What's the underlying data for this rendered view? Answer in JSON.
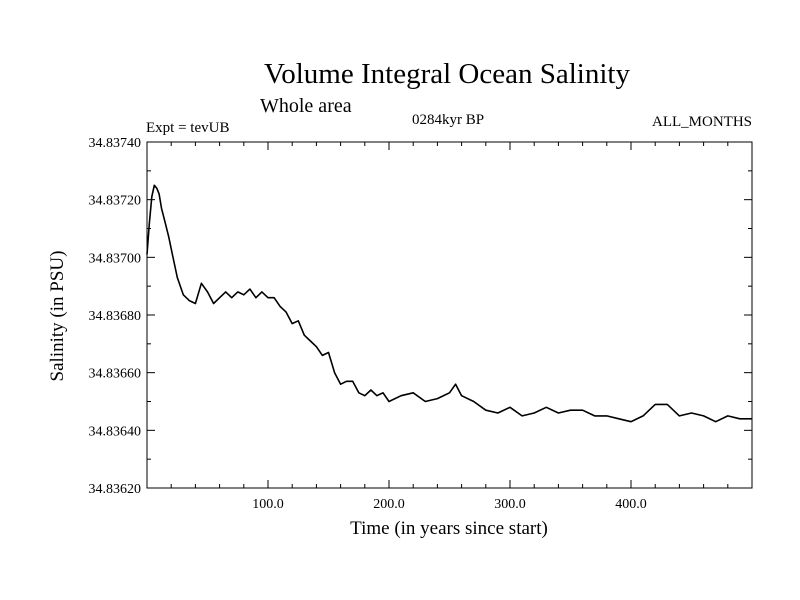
{
  "header": {
    "title": "Volume Integral Ocean Salinity",
    "subtitle": "Whole area",
    "expt_label": "Expt = tevUB",
    "period_label": "0284kyr BP",
    "months_label": "ALL_MONTHS"
  },
  "chart_data": {
    "type": "line",
    "title": "Volume Integral Ocean Salinity",
    "subtitle": "Whole area",
    "xlabel": "Time (in years since start)",
    "ylabel": "Salinity (in PSU)",
    "xlim": [
      0,
      500
    ],
    "ylim": [
      34.8362,
      34.8374
    ],
    "grid": false,
    "x_ticks": [
      100,
      200,
      300,
      400
    ],
    "x_tick_labels": [
      "100.0",
      "200.0",
      "300.0",
      "400.0"
    ],
    "y_ticks": [
      34.8362,
      34.8364,
      34.8366,
      34.8368,
      34.837,
      34.8372,
      34.8374
    ],
    "y_tick_labels": [
      "34.83620",
      "34.83640",
      "34.83660",
      "34.83680",
      "34.83700",
      "34.83720",
      "34.83740"
    ],
    "series": [
      {
        "color": "#000000",
        "x": [
          0,
          2,
          4,
          6,
          8,
          10,
          12,
          15,
          18,
          21,
          25,
          30,
          35,
          40,
          45,
          50,
          55,
          60,
          65,
          70,
          75,
          80,
          85,
          90,
          95,
          100,
          105,
          110,
          115,
          120,
          125,
          130,
          135,
          140,
          145,
          150,
          155,
          160,
          165,
          170,
          175,
          180,
          185,
          190,
          195,
          200,
          210,
          220,
          230,
          240,
          250,
          255,
          260,
          270,
          280,
          290,
          300,
          310,
          320,
          330,
          340,
          350,
          360,
          370,
          380,
          390,
          400,
          410,
          420,
          430,
          440,
          450,
          460,
          470,
          480,
          490,
          500
        ],
        "y": [
          34.83701,
          34.83712,
          34.83721,
          34.83725,
          34.83724,
          34.83722,
          34.83717,
          34.83712,
          34.83707,
          34.83701,
          34.83693,
          34.83687,
          34.83685,
          34.83684,
          34.83691,
          34.83688,
          34.83684,
          34.83686,
          34.83688,
          34.83686,
          34.83688,
          34.83687,
          34.83689,
          34.83686,
          34.83688,
          34.83686,
          34.83686,
          34.83683,
          34.83681,
          34.83677,
          34.83678,
          34.83673,
          34.83671,
          34.83669,
          34.83666,
          34.83667,
          34.8366,
          34.83656,
          34.83657,
          34.83657,
          34.83653,
          34.83652,
          34.83654,
          34.83652,
          34.83653,
          34.8365,
          34.83652,
          34.83653,
          34.8365,
          34.83651,
          34.83653,
          34.83656,
          34.83652,
          34.8365,
          34.83647,
          34.83646,
          34.83648,
          34.83645,
          34.83646,
          34.83648,
          34.83646,
          34.83647,
          34.83647,
          34.83645,
          34.83645,
          34.83644,
          34.83643,
          34.83645,
          34.83649,
          34.83649,
          34.83645,
          34.83646,
          34.83645,
          34.83643,
          34.83645,
          34.83644,
          34.83644
        ]
      }
    ]
  }
}
